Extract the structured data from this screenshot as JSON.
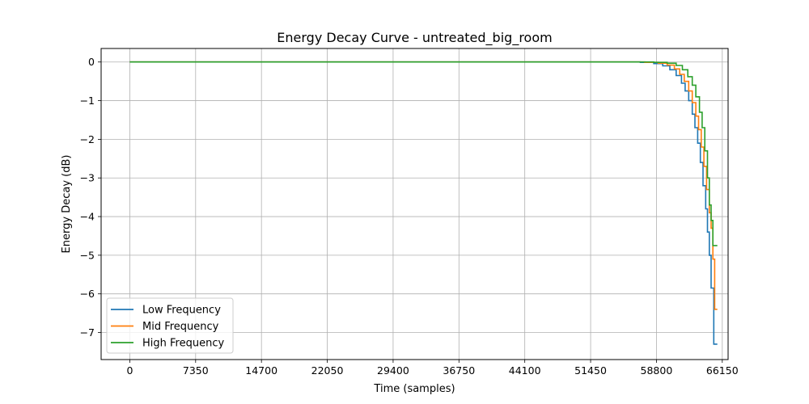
{
  "chart_data": {
    "type": "line",
    "title": "Energy Decay Curve - untreated_big_room",
    "xlabel": "Time (samples)",
    "ylabel": "Energy Decay (dB)",
    "xlim": [
      -3200,
      66800
    ],
    "ylim": [
      -7.7,
      0.35
    ],
    "xticks": [
      0,
      7350,
      14700,
      22050,
      29400,
      36750,
      44100,
      51450,
      58800,
      66150
    ],
    "yticks": [
      0,
      -1,
      -2,
      -3,
      -4,
      -5,
      -6,
      -7
    ],
    "grid": true,
    "legend_position": "lower-left",
    "series": [
      {
        "name": "Low Frequency",
        "color": "#1f77b4",
        "x": [
          0,
          55000,
          57000,
          58500,
          59500,
          60300,
          61000,
          61600,
          62000,
          62400,
          62800,
          63100,
          63400,
          63700,
          64000,
          64300,
          64500,
          64700,
          64900,
          65200,
          65600
        ],
        "y": [
          0,
          0,
          -0.01,
          -0.04,
          -0.1,
          -0.2,
          -0.35,
          -0.55,
          -0.75,
          -1.0,
          -1.35,
          -1.7,
          -2.1,
          -2.6,
          -3.2,
          -3.8,
          -4.4,
          -5.0,
          -5.85,
          -7.3,
          -7.3
        ]
      },
      {
        "name": "Mid Frequency",
        "color": "#ff7f0e",
        "x": [
          0,
          55500,
          57500,
          59000,
          60000,
          60800,
          61400,
          61900,
          62400,
          62800,
          63200,
          63500,
          63800,
          64100,
          64400,
          64700,
          64900,
          65100,
          65300,
          65600
        ],
        "y": [
          0,
          0,
          -0.01,
          -0.03,
          -0.08,
          -0.18,
          -0.32,
          -0.5,
          -0.75,
          -1.05,
          -1.4,
          -1.75,
          -2.2,
          -2.7,
          -3.3,
          -3.9,
          -4.3,
          -5.1,
          -6.4,
          -6.4
        ]
      },
      {
        "name": "High Frequency",
        "color": "#2ca02c",
        "x": [
          0,
          56000,
          58500,
          60000,
          61000,
          61700,
          62300,
          62800,
          63200,
          63600,
          63900,
          64200,
          64500,
          64700,
          64900,
          65100,
          65300,
          65600
        ],
        "y": [
          0,
          0,
          -0.01,
          -0.03,
          -0.09,
          -0.2,
          -0.38,
          -0.6,
          -0.9,
          -1.3,
          -1.7,
          -2.3,
          -3.0,
          -3.7,
          -4.1,
          -4.75,
          -4.75,
          -4.75
        ]
      }
    ]
  }
}
